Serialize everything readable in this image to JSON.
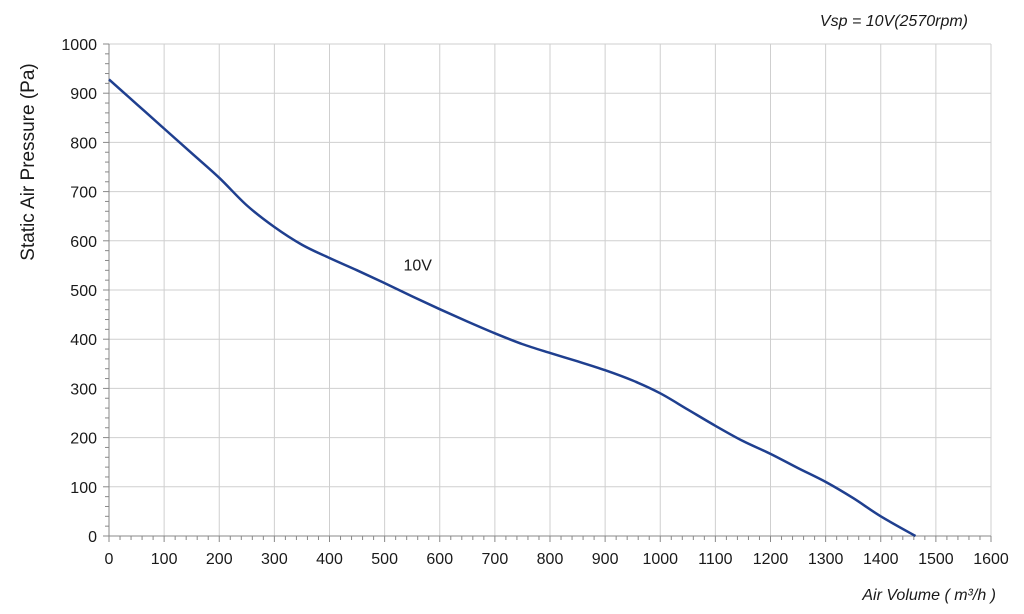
{
  "chart_data": {
    "type": "line",
    "title": "",
    "annotation": "Vsp = 10V(2570rpm)",
    "xlabel": "Air Volume ( m³/h )",
    "ylabel": "Static Air Pressure  (Pa)",
    "xlim": [
      0,
      1600
    ],
    "ylim": [
      0,
      1000
    ],
    "xticks": [
      0,
      100,
      200,
      300,
      400,
      500,
      600,
      700,
      800,
      900,
      1000,
      1100,
      1200,
      1300,
      1400,
      1500,
      1600
    ],
    "yticks": [
      0,
      100,
      200,
      300,
      400,
      500,
      600,
      700,
      800,
      900,
      1000
    ],
    "grid": true,
    "series": [
      {
        "name": "10V",
        "color": "#1f3f8f",
        "x": [
          0,
          50,
          100,
          150,
          200,
          250,
          300,
          350,
          400,
          450,
          500,
          550,
          600,
          650,
          700,
          750,
          800,
          850,
          900,
          950,
          1000,
          1050,
          1100,
          1150,
          1200,
          1250,
          1300,
          1350,
          1400,
          1463
        ],
        "y": [
          928,
          878,
          828,
          778,
          728,
          672,
          628,
          592,
          565,
          540,
          514,
          487,
          461,
          436,
          412,
          390,
          372,
          355,
          337,
          316,
          290,
          257,
          224,
          193,
          167,
          138,
          110,
          77,
          40,
          0
        ]
      }
    ]
  }
}
